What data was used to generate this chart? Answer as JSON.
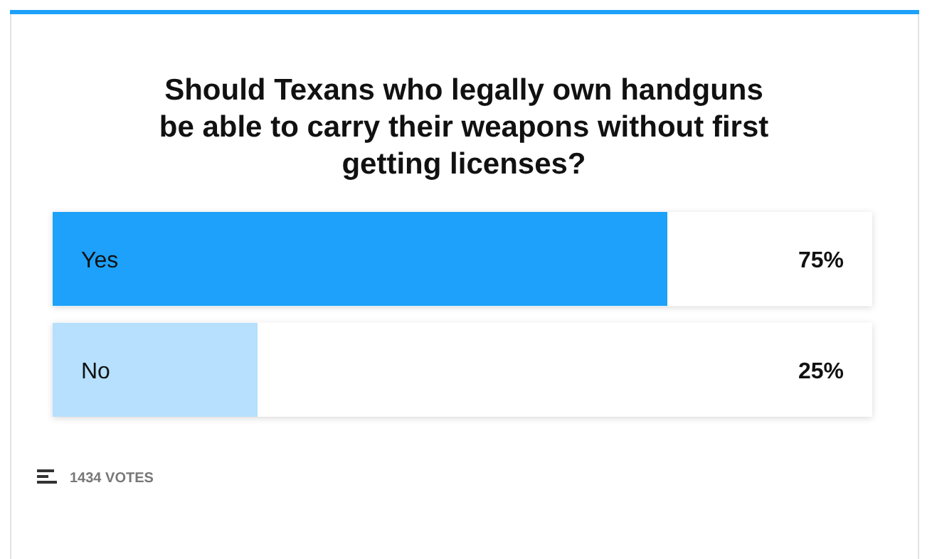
{
  "chart_data": {
    "type": "bar",
    "orientation": "horizontal",
    "title": "Should Texans who legally own handguns be able to carry their weapons without first getting licenses?",
    "categories": [
      "Yes",
      "No"
    ],
    "values": [
      75,
      25
    ],
    "colors": [
      "#1da1fa",
      "#b6e0fd"
    ],
    "value_labels": [
      "75%",
      "25%"
    ],
    "tick_labels": false,
    "annotations": [
      "1434 VOTES"
    ]
  }
}
